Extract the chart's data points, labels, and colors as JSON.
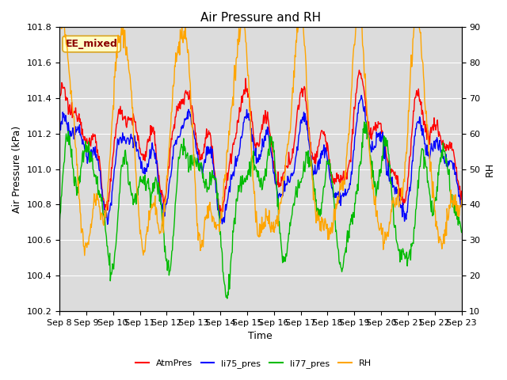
{
  "title": "Air Pressure and RH",
  "xlabel": "Time",
  "ylabel_left": "Air Pressure (kPa)",
  "ylabel_right": "RH",
  "ylim_left": [
    100.2,
    101.8
  ],
  "ylim_right": [
    10,
    90
  ],
  "yticks_left": [
    100.2,
    100.4,
    100.6,
    100.8,
    101.0,
    101.2,
    101.4,
    101.6,
    101.8
  ],
  "yticks_right": [
    10,
    20,
    30,
    40,
    50,
    60,
    70,
    80,
    90
  ],
  "xtick_labels": [
    "Sep 8",
    "Sep 9",
    "Sep 10",
    "Sep 11",
    "Sep 12",
    "Sep 13",
    "Sep 14",
    "Sep 15",
    "Sep 16",
    "Sep 17",
    "Sep 18",
    "Sep 19",
    "Sep 20",
    "Sep 21",
    "Sep 22",
    "Sep 23"
  ],
  "annotation_text": "EE_mixed",
  "annotation_color": "#8B0000",
  "annotation_bg": "#FFFFC8",
  "annotation_border": "#DAA520",
  "colors": {
    "AtmPres": "#FF0000",
    "li75_pres": "#0000FF",
    "li77_pres": "#00BB00",
    "RH": "#FFA500"
  },
  "legend_labels": [
    "AtmPres",
    "li75_pres",
    "li77_pres",
    "RH"
  ],
  "bg_color": "#DCDCDC",
  "grid_color": "white",
  "title_fontsize": 11,
  "axis_label_fontsize": 9,
  "tick_fontsize": 8,
  "linewidth": 1.0
}
